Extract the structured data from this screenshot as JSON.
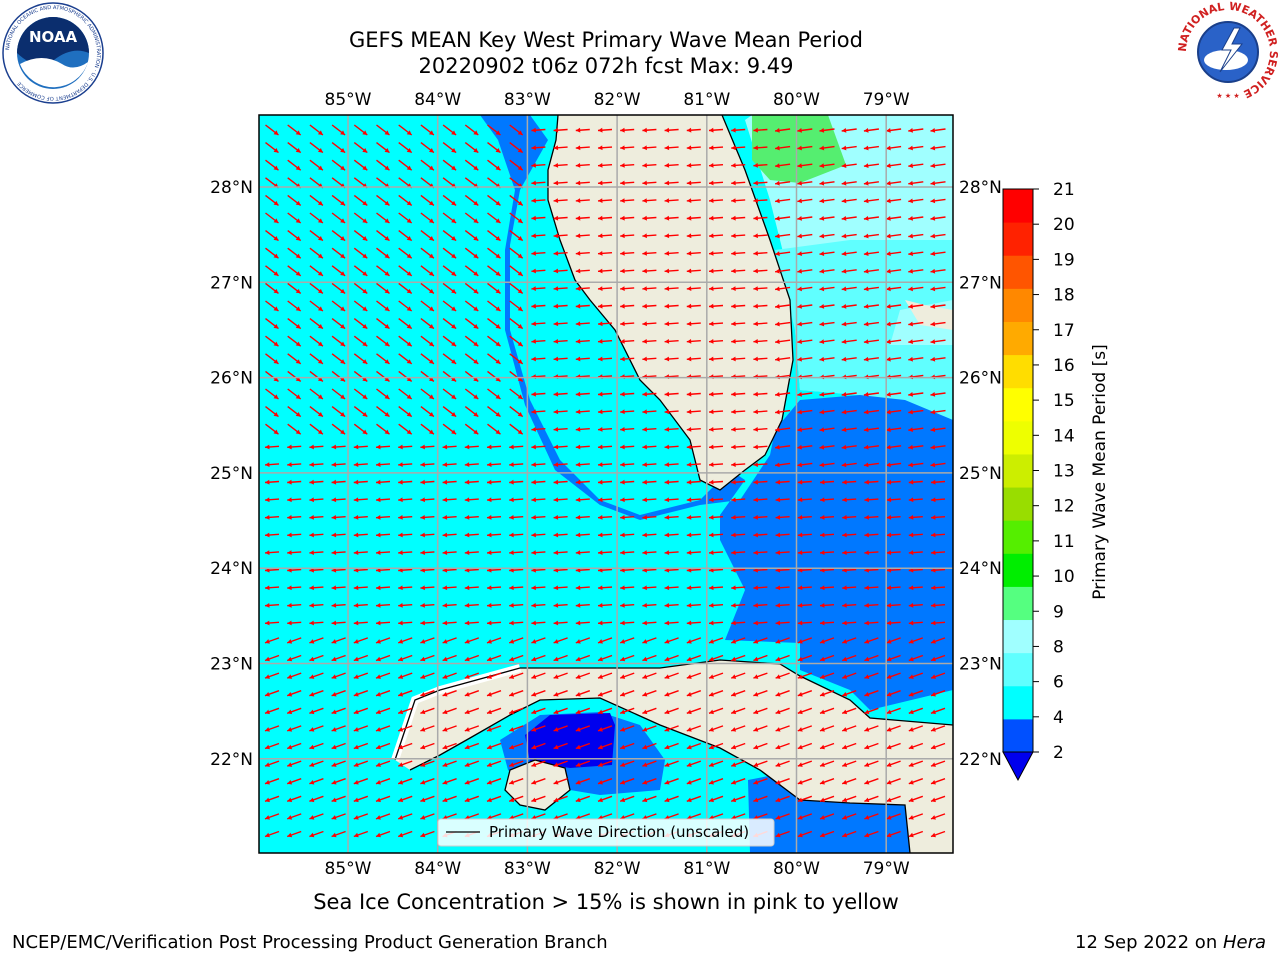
{
  "title": {
    "line1": "GEFS MEAN Key West Primary Wave Mean Period",
    "line2": "20220902 t06z 072h fcst   Max: 9.49"
  },
  "map": {
    "lon_ticks": [
      "85°W",
      "84°W",
      "83°W",
      "82°W",
      "81°W",
      "80°W",
      "79°W"
    ],
    "lat_ticks": [
      "28°N",
      "27°N",
      "26°N",
      "25°N",
      "24°N",
      "23°N",
      "22°N"
    ],
    "legend_label": "Primary Wave Direction (unscaled)"
  },
  "colorbar": {
    "label": "Primary Wave Mean Period [s]",
    "ticks": [
      "2",
      "4",
      "6",
      "8",
      "9",
      "10",
      "11",
      "12",
      "13",
      "14",
      "15",
      "16",
      "17",
      "18",
      "19",
      "20",
      "21"
    ],
    "colors": [
      "#0050ff",
      "#00ffff",
      "#60ffff",
      "#a0ffff",
      "#55ff80",
      "#00ee00",
      "#55ee00",
      "#99dd00",
      "#ccee00",
      "#eeff00",
      "#ffff00",
      "#ffdd00",
      "#ffaa00",
      "#ff8800",
      "#ff5500",
      "#ff2200",
      "#ff0000"
    ]
  },
  "colors": {
    "ocean_main": "#00ffff",
    "ocean_deep": "#0078ff",
    "ocean_deepest": "#0000ee",
    "ocean_light": "#a0ffff",
    "ocean_mid": "#60ffff",
    "ocean_green": "#55ee70",
    "land": "#eeeddd",
    "arrow": "#ff0000"
  },
  "logos": {
    "noaa_text": "NOAA",
    "noaa_ring": "NATIONAL OCEANIC AND ATMOSPHERIC ADMINISTRATION · U.S. DEPARTMENT OF COMMERCE",
    "nws_ring": "NATIONAL WEATHER SERVICE"
  },
  "footnote": "Sea Ice Concentration > 15% is shown in pink to yellow",
  "footer": {
    "left": "NCEP/EMC/Verification Post Processing Product Generation Branch",
    "right_prefix": "12 Sep 2022 on ",
    "right_host": "Hera"
  }
}
